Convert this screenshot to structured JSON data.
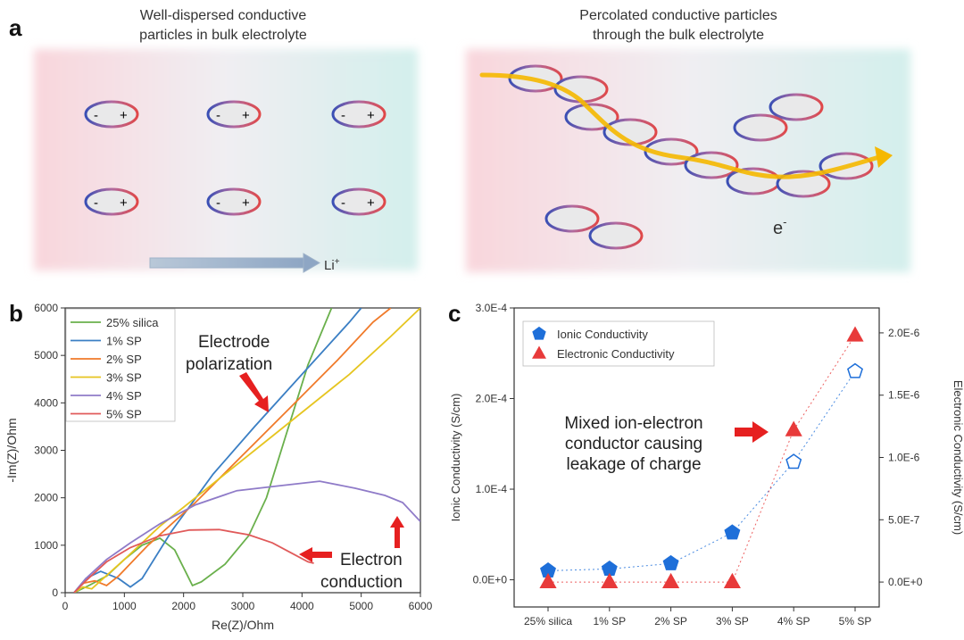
{
  "panel_a": {
    "letter": "a",
    "left_caption_1": "Well-dispersed conductive",
    "left_caption_2": "particles in bulk electrolyte",
    "right_caption_1": "Percolated conductive particles",
    "right_caption_2": "through the bulk electrolyte",
    "minus": "-",
    "plus": "+",
    "li_label": "Li",
    "li_sup": "+",
    "e_label": "e",
    "e_sup": "-"
  },
  "panel_b": {
    "letter": "b"
  },
  "panel_c": {
    "letter": "c"
  },
  "chart_data": [
    {
      "type": "line",
      "xlabel": "Re(Z)/Ohm",
      "ylabel": "-Im(Z)/Ohm",
      "xlim": [
        0,
        6000
      ],
      "ylim": [
        0,
        6000
      ],
      "xticks": [
        "0",
        "1000",
        "2000",
        "3000",
        "4000",
        "5000",
        "6000"
      ],
      "yticks": [
        "0",
        "1000",
        "2000",
        "3000",
        "4000",
        "5000",
        "6000"
      ],
      "legend_position": "top-left",
      "annotations": [
        "Electrode",
        "polarization",
        "Electron",
        "conduction"
      ],
      "series": [
        {
          "name": "25% silica",
          "color": "#6ab04c",
          "points": [
            [
              150,
              0
            ],
            [
              400,
              150
            ],
            [
              700,
              350
            ],
            [
              1000,
              700
            ],
            [
              1300,
              1000
            ],
            [
              1600,
              1150
            ],
            [
              1850,
              900
            ],
            [
              2050,
              400
            ],
            [
              2150,
              150
            ],
            [
              2300,
              230
            ],
            [
              2700,
              600
            ],
            [
              3100,
              1200
            ],
            [
              3400,
              2000
            ],
            [
              3700,
              3200
            ],
            [
              4100,
              4800
            ],
            [
              4500,
              6000
            ]
          ]
        },
        {
          "name": "1% SP",
          "color": "#3b7fc4",
          "points": [
            [
              150,
              0
            ],
            [
              350,
              300
            ],
            [
              600,
              450
            ],
            [
              900,
              300
            ],
            [
              1100,
              120
            ],
            [
              1300,
              300
            ],
            [
              1800,
              1300
            ],
            [
              2500,
              2500
            ],
            [
              3200,
              3500
            ],
            [
              4000,
              4600
            ],
            [
              4800,
              5700
            ],
            [
              5000,
              6000
            ]
          ]
        },
        {
          "name": "2% SP",
          "color": "#f07a2a",
          "points": [
            [
              150,
              0
            ],
            [
              300,
              200
            ],
            [
              500,
              250
            ],
            [
              700,
              150
            ],
            [
              900,
              350
            ],
            [
              1400,
              1000
            ],
            [
              2200,
              1900
            ],
            [
              3000,
              2900
            ],
            [
              3800,
              3900
            ],
            [
              4600,
              4900
            ],
            [
              5200,
              5700
            ],
            [
              5500,
              6000
            ]
          ]
        },
        {
          "name": "3% SP",
          "color": "#e6c520",
          "points": [
            [
              150,
              0
            ],
            [
              300,
              120
            ],
            [
              450,
              80
            ],
            [
              600,
              250
            ],
            [
              1000,
              700
            ],
            [
              1600,
              1400
            ],
            [
              2400,
              2200
            ],
            [
              3200,
              3000
            ],
            [
              4000,
              3800
            ],
            [
              4800,
              4600
            ],
            [
              5500,
              5400
            ],
            [
              6000,
              6000
            ]
          ]
        },
        {
          "name": "4% SP",
          "color": "#8f7bc8",
          "points": [
            [
              150,
              0
            ],
            [
              350,
              300
            ],
            [
              700,
              700
            ],
            [
              1100,
              1050
            ],
            [
              1600,
              1450
            ],
            [
              2200,
              1850
            ],
            [
              2900,
              2150
            ],
            [
              3600,
              2250
            ],
            [
              4300,
              2350
            ],
            [
              4900,
              2200
            ],
            [
              5400,
              2050
            ],
            [
              5700,
              1900
            ],
            [
              6000,
              1500
            ]
          ]
        },
        {
          "name": "5% SP",
          "color": "#e05a5a",
          "points": [
            [
              150,
              0
            ],
            [
              350,
              250
            ],
            [
              700,
              650
            ],
            [
              1100,
              950
            ],
            [
              1600,
              1200
            ],
            [
              2100,
              1320
            ],
            [
              2600,
              1330
            ],
            [
              3100,
              1220
            ],
            [
              3500,
              1050
            ],
            [
              3800,
              850
            ],
            [
              4100,
              650
            ],
            [
              4200,
              620
            ]
          ]
        }
      ]
    },
    {
      "type": "scatter",
      "categories": [
        "25% silica",
        "1% SP",
        "2% SP",
        "3% SP",
        "4% SP",
        "5% SP"
      ],
      "ylabel": "Ionic Conductivity (S/cm)",
      "ylabel_right": "Electronic Conductivity (S/cm)",
      "ylim": [
        -3e-05,
        0.0003
      ],
      "ylim_right": [
        -2e-07,
        2.2e-06
      ],
      "yticks_left": [
        "0.0E+0",
        "1.0E-4",
        "2.0E-4",
        "3.0E-4"
      ],
      "yticks_right": [
        "0.0E+0",
        "5.0E-7",
        "1.0E-6",
        "1.5E-6",
        "2.0E-6"
      ],
      "legend_position": "top-left",
      "annotations": [
        "Mixed ion-electron",
        "conductor causing",
        "leakage of charge"
      ],
      "series": [
        {
          "name": "Ionic Conductivity",
          "color": "#1e6fd9",
          "marker": "pentagon",
          "axis": "left",
          "values": [
            1e-05,
            1.2e-05,
            1.8e-05,
            5.2e-05,
            0.00013,
            0.00023
          ],
          "filled": [
            true,
            true,
            true,
            true,
            false,
            false
          ]
        },
        {
          "name": "Electronic Conductivity",
          "color": "#e83a3a",
          "marker": "triangle",
          "axis": "right",
          "values": [
            0,
            0,
            0,
            0,
            1.22e-06,
            1.98e-06
          ],
          "filled": [
            true,
            true,
            true,
            true,
            true,
            true
          ]
        }
      ]
    }
  ]
}
